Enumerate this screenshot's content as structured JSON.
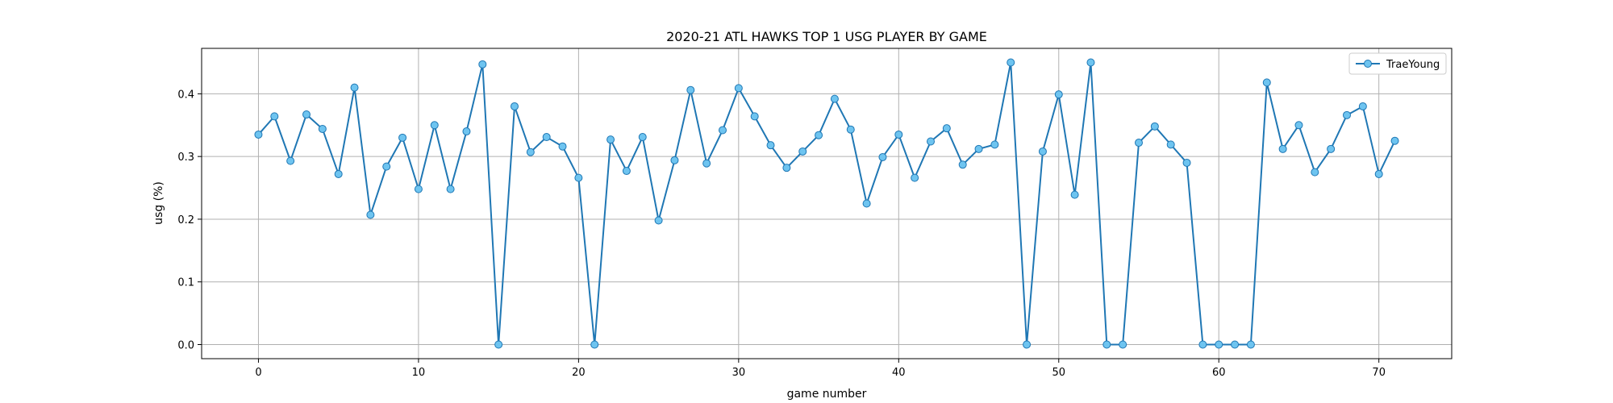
{
  "chart_data": {
    "type": "line",
    "title": "2020-21 ATL HAWKS TOP 1 USG PLAYER BY GAME",
    "xlabel": "game number",
    "ylabel": "usg (%)",
    "xlim": [
      -3.55,
      74.55
    ],
    "ylim": [
      -0.0225,
      0.4725
    ],
    "xticks": [
      0,
      10,
      20,
      30,
      40,
      50,
      60,
      70
    ],
    "yticks": [
      0.0,
      0.1,
      0.2,
      0.3,
      0.4
    ],
    "xtick_labels": [
      "0",
      "10",
      "20",
      "30",
      "40",
      "50",
      "60",
      "70"
    ],
    "ytick_labels": [
      "0.0",
      "0.1",
      "0.2",
      "0.3",
      "0.4"
    ],
    "grid": true,
    "legend_position": "top-right",
    "series": [
      {
        "name": "TraeYoung",
        "line_color": "#1f77b4",
        "marker_face_color": "#6ec4f0",
        "marker_edge_color": "#1f77b4",
        "x": [
          0,
          1,
          2,
          3,
          4,
          5,
          6,
          7,
          8,
          9,
          10,
          11,
          12,
          13,
          14,
          15,
          16,
          17,
          18,
          19,
          20,
          21,
          22,
          23,
          24,
          25,
          26,
          27,
          28,
          29,
          30,
          31,
          32,
          33,
          34,
          35,
          36,
          37,
          38,
          39,
          40,
          41,
          42,
          43,
          44,
          45,
          46,
          47,
          48,
          49,
          50,
          51,
          52,
          53,
          54,
          55,
          56,
          57,
          58,
          59,
          60,
          61,
          62,
          63,
          64,
          65,
          66,
          67,
          68,
          69,
          70,
          71
        ],
        "values": [
          0.335,
          0.364,
          0.293,
          0.367,
          0.344,
          0.272,
          0.41,
          0.207,
          0.284,
          0.33,
          0.248,
          0.35,
          0.248,
          0.34,
          0.447,
          0.0,
          0.38,
          0.307,
          0.331,
          0.316,
          0.266,
          0.0,
          0.327,
          0.277,
          0.331,
          0.198,
          0.294,
          0.406,
          0.289,
          0.342,
          0.409,
          0.364,
          0.318,
          0.282,
          0.308,
          0.334,
          0.392,
          0.343,
          0.225,
          0.299,
          0.335,
          0.266,
          0.324,
          0.345,
          0.287,
          0.312,
          0.319,
          0.45,
          0.0,
          0.308,
          0.399,
          0.239,
          0.45,
          0.0,
          0.0,
          0.322,
          0.348,
          0.319,
          0.29,
          0.0,
          0.0,
          0.0,
          0.0,
          0.418,
          0.312,
          0.35,
          0.275,
          0.312,
          0.366,
          0.38,
          0.272,
          0.325
        ]
      }
    ]
  }
}
